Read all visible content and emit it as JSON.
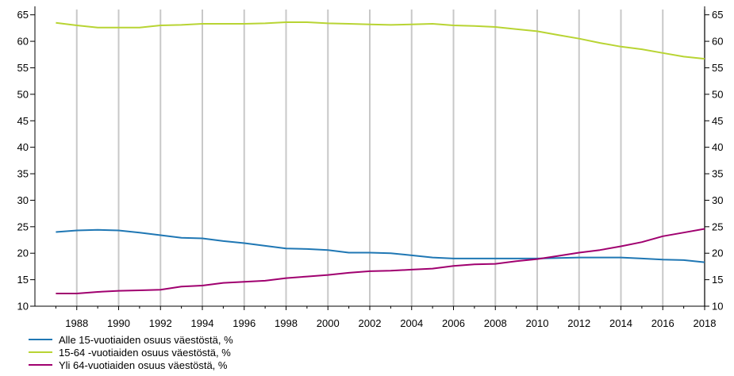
{
  "chart_data": {
    "type": "line",
    "title": "",
    "xlabel": "",
    "ylabel": "",
    "xlim": [
      1986,
      2018
    ],
    "ylim": [
      10,
      66
    ],
    "y_ticks": [
      "10",
      "15",
      "20",
      "25",
      "30",
      "35",
      "40",
      "45",
      "50",
      "55",
      "60",
      "65"
    ],
    "x_ticks": [
      "1988",
      "1990",
      "1992",
      "1994",
      "1996",
      "1998",
      "2000",
      "2002",
      "2004",
      "2006",
      "2008",
      "2010",
      "2012",
      "2014",
      "2016",
      "2018"
    ],
    "grid": true,
    "legend_position": "bottom-left",
    "x": [
      1987,
      1988,
      1989,
      1990,
      1991,
      1992,
      1993,
      1994,
      1995,
      1996,
      1997,
      1998,
      1999,
      2000,
      2001,
      2002,
      2003,
      2004,
      2005,
      2006,
      2007,
      2008,
      2009,
      2010,
      2011,
      2012,
      2013,
      2014,
      2015,
      2016,
      2017,
      2018
    ],
    "series": [
      {
        "name": "Alle 15-vuotiaiden osuus väestöstä, %",
        "color": "#1f77b4",
        "values": [
          24.0,
          24.3,
          24.4,
          24.3,
          23.9,
          23.4,
          22.9,
          22.8,
          22.3,
          21.9,
          21.4,
          20.9,
          20.8,
          20.6,
          20.1,
          20.1,
          20.0,
          19.6,
          19.2,
          19.0,
          19.0,
          19.0,
          19.0,
          19.0,
          19.1,
          19.2,
          19.2,
          19.2,
          19.0,
          18.8,
          18.7,
          18.3
        ]
      },
      {
        "name": "15-64 -vuotiaiden osuus väestöstä, %",
        "color": "#b8d433",
        "values": [
          63.5,
          63.0,
          62.6,
          62.6,
          62.6,
          63.0,
          63.1,
          63.3,
          63.3,
          63.3,
          63.4,
          63.6,
          63.6,
          63.4,
          63.3,
          63.2,
          63.1,
          63.2,
          63.3,
          63.0,
          62.9,
          62.7,
          62.3,
          61.9,
          61.2,
          60.5,
          59.7,
          59.0,
          58.5,
          57.8,
          57.1,
          56.7
        ]
      },
      {
        "name": "Yli 64-vuotiaiden osuus väestöstä, %",
        "color": "#a0006f",
        "values": [
          12.4,
          12.4,
          12.7,
          12.9,
          13.0,
          13.1,
          13.7,
          13.9,
          14.4,
          14.6,
          14.8,
          15.3,
          15.6,
          15.9,
          16.3,
          16.6,
          16.7,
          16.9,
          17.1,
          17.6,
          17.9,
          18.0,
          18.5,
          18.9,
          19.5,
          20.1,
          20.6,
          21.3,
          22.1,
          23.2,
          23.9,
          24.6
        ]
      }
    ]
  }
}
